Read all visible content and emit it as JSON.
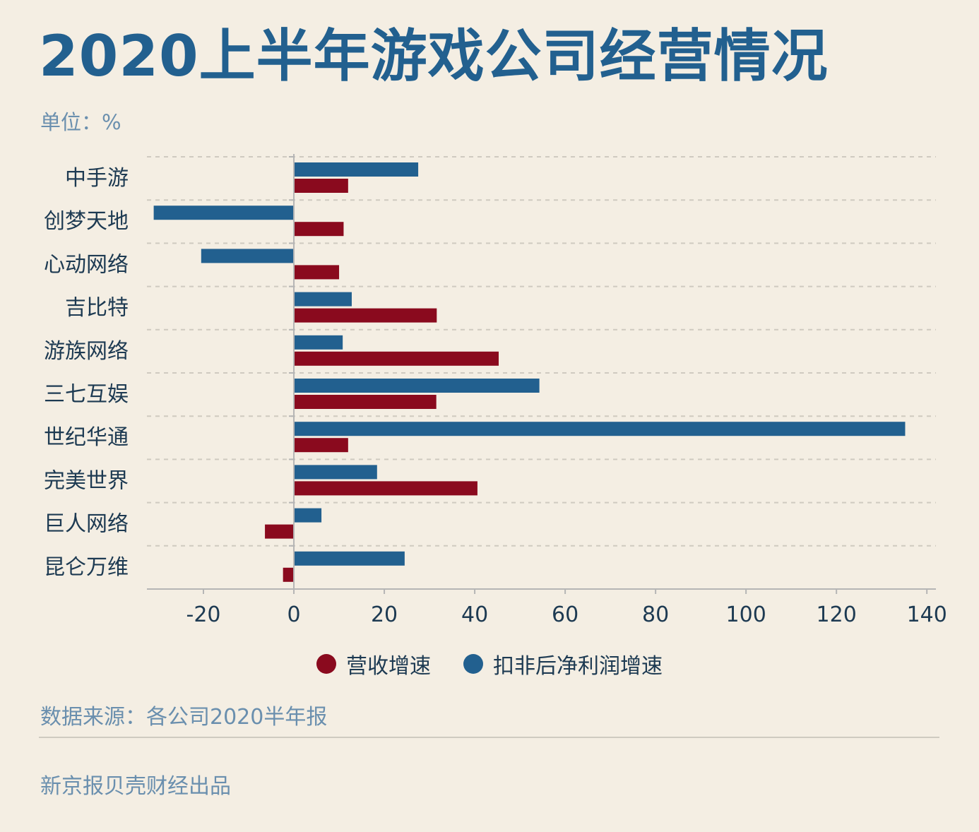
{
  "header": {
    "title": "2020上半年游戏公司经营情况",
    "unit": "单位：%"
  },
  "footer": {
    "source": "数据来源：各公司2020半年报",
    "credit": "新京报贝壳财经出品"
  },
  "colors": {
    "revenue": "#8a0a1e",
    "profit": "#22608f",
    "axis": "#b5b5b5",
    "grid": "#cfcac0",
    "label": "#1d3a52"
  },
  "chart_data": {
    "type": "bar",
    "orientation": "horizontal",
    "categories": [
      "中手游",
      "创梦天地",
      "心动网络",
      "吉比特",
      "游族网络",
      "三七互娱",
      "世纪华通",
      "完美世界",
      "巨人网络",
      "昆仑万维"
    ],
    "series": [
      {
        "name": "扣非后净利润增速",
        "color": "#22608f",
        "values": [
          27.5,
          -31,
          -20.5,
          12.8,
          10.8,
          54.3,
          135.2,
          18.4,
          6.1,
          24.5
        ]
      },
      {
        "name": "营收增速",
        "color": "#8a0a1e",
        "values": [
          12,
          11,
          10,
          31.6,
          45.3,
          31.5,
          12,
          40.6,
          -6.4,
          -2.4
        ]
      }
    ],
    "xticks": [
      -20,
      0,
      20,
      40,
      60,
      80,
      100,
      120,
      140
    ],
    "xlim": [
      -32.5,
      142
    ],
    "legend": [
      {
        "name": "营收增速",
        "color": "#8a0a1e"
      },
      {
        "name": "扣非后净利润增速",
        "color": "#22608f"
      }
    ],
    "legend_position": "bottom",
    "grid": "horizontal-dashed",
    "xlabel": "",
    "ylabel": ""
  }
}
